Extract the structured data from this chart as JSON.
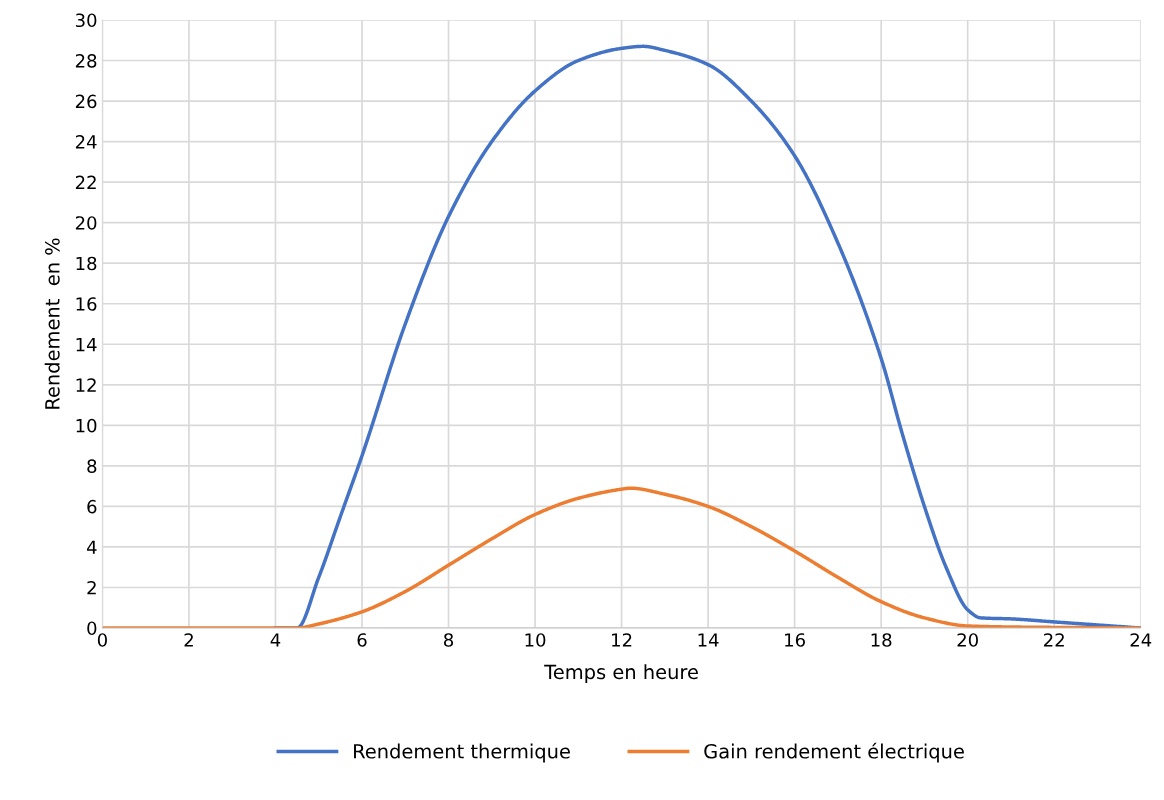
{
  "chart_data": {
    "type": "line",
    "xlabel": "Temps en heure",
    "ylabel": "Rendement  en %",
    "xlim": [
      0,
      24
    ],
    "xticks": [
      0,
      2,
      4,
      6,
      8,
      10,
      12,
      14,
      16,
      18,
      20,
      22,
      24
    ],
    "ylim": [
      0,
      30
    ],
    "yticks": [
      0,
      2,
      4,
      6,
      8,
      10,
      12,
      14,
      16,
      18,
      20,
      22,
      24,
      26,
      28,
      30
    ],
    "grid": true,
    "legend": "bottom",
    "marker": "none",
    "line_style": "solid",
    "series": [
      {
        "name": "Rendement thermique",
        "color": "#4472c4",
        "x": [
          4,
          4.5,
          5,
          5.5,
          6,
          7,
          8,
          9,
          10,
          11,
          12,
          12.5,
          13,
          14,
          15,
          16,
          17,
          18,
          18.5,
          19,
          19.5,
          20,
          20.3,
          21,
          22,
          23,
          24
        ],
        "values": [
          0,
          0,
          2.5,
          5.5,
          8.5,
          15,
          20.3,
          24,
          26.5,
          28,
          28.6,
          28.7,
          28.5,
          27.8,
          26,
          23.3,
          19,
          13.3,
          9.5,
          6,
          3,
          0.9,
          0.5,
          0.45,
          0.3,
          0.15,
          0
        ]
      },
      {
        "name": "Gain rendement électrique",
        "color": "#ed7d31",
        "x": [
          0,
          2,
          4,
          4.5,
          5,
          6,
          7,
          8,
          9,
          10,
          11,
          12,
          12.2,
          13,
          14,
          15,
          16,
          17,
          18,
          19,
          20,
          21,
          22,
          24
        ],
        "values": [
          0,
          0,
          0,
          0,
          0.2,
          0.8,
          1.8,
          3.1,
          4.4,
          5.6,
          6.4,
          6.85,
          6.9,
          6.6,
          6.0,
          5.0,
          3.8,
          2.5,
          1.3,
          0.5,
          0.1,
          0.05,
          0.03,
          0
        ]
      }
    ]
  }
}
